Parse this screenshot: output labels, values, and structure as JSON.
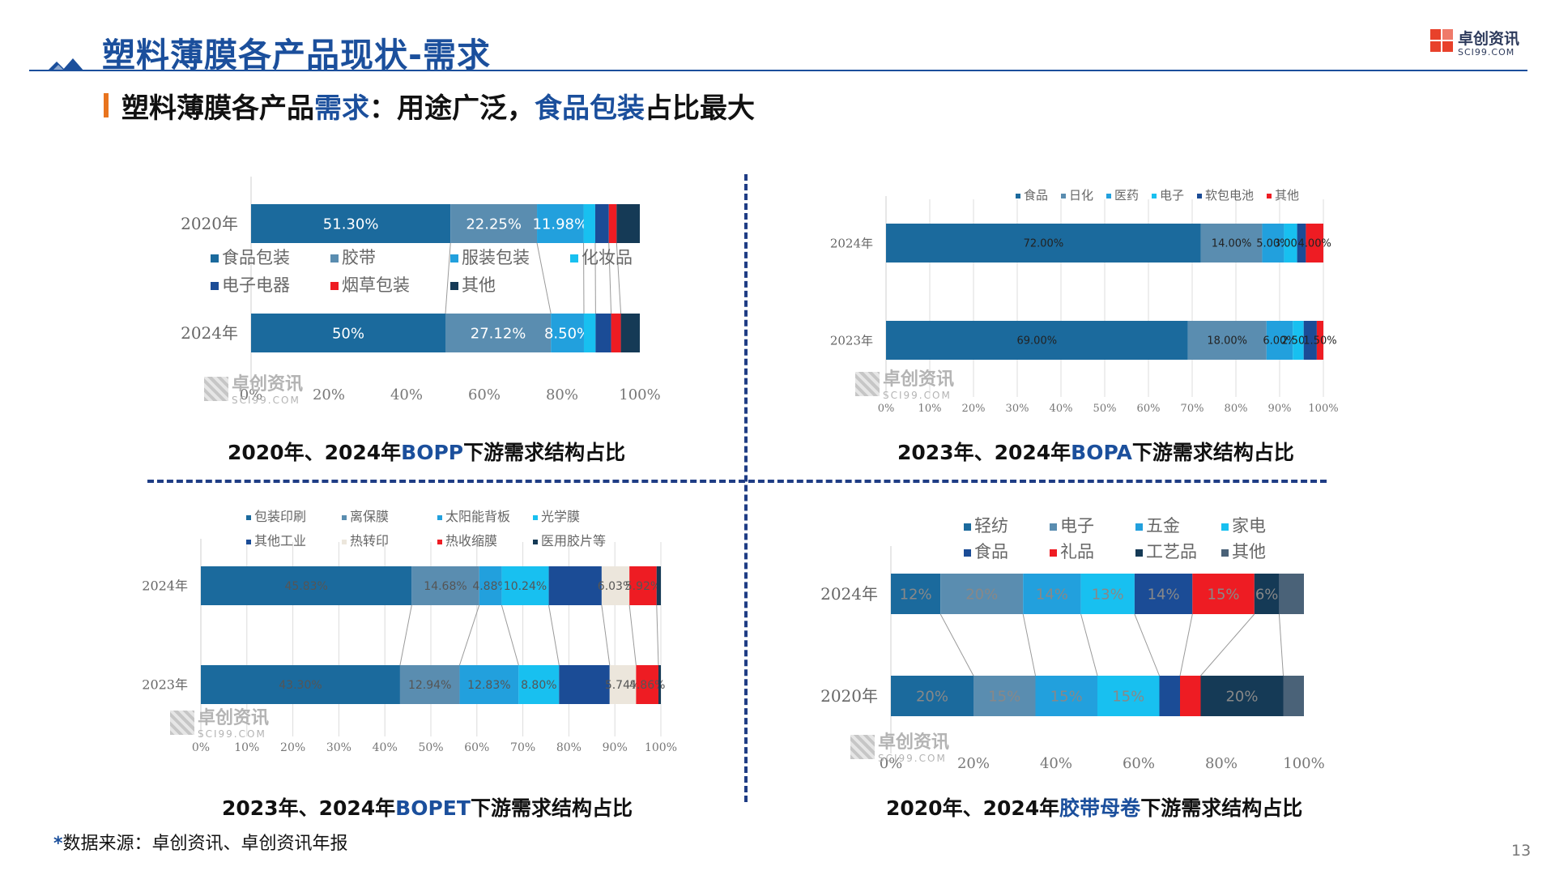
{
  "header": {
    "title": "塑料薄膜各产品现状-需求",
    "logo_name": "卓创资讯",
    "logo_sub": "SCI99.COM"
  },
  "subtitle": {
    "part1": "塑料薄膜各产品",
    "part2": "需求",
    "part3": "：用途广泛，",
    "part4": "食品包装",
    "part5": "占比最大"
  },
  "captions": {
    "bopp": {
      "a": "2020年、2024年",
      "b": "BOPP",
      "c": "下游需求结构占比"
    },
    "bopa": {
      "a": "2023年、2024年",
      "b": "BOPA",
      "c": "下游需求结构占比"
    },
    "bopet": {
      "a": "2023年、2024年",
      "b": "BOPET",
      "c": "下游需求结构占比"
    },
    "tape": {
      "a": "2020年、2024年",
      "b": "胶带母卷",
      "c": "下游需求结构占比"
    }
  },
  "watermark": {
    "name": "卓创资讯",
    "sub": "SCI99.COM"
  },
  "footer": {
    "star": "*",
    "note": "数据来源：卓创资讯、卓创资讯年报",
    "page": "13"
  },
  "colors": {
    "blue_dark": "#1b6a9d",
    "steel": "#5a8db0",
    "sky": "#22a0dd",
    "cyan": "#18c0f0",
    "navy": "#1b4c96",
    "red": "#ee1c23",
    "black_navy": "#153a56",
    "slate": "#4a6278",
    "cream": "#ece6dc",
    "accent": "#1b4f9c"
  },
  "chart_data": [
    {
      "id": "bopp",
      "type": "bar",
      "orientation": "horizontal-stacked-100",
      "categories": [
        "2020年",
        "2024年"
      ],
      "legend_placement": "between-bars",
      "x_ticks": [
        "0%",
        "20%",
        "40%",
        "60%",
        "80%",
        "100%"
      ],
      "series": [
        {
          "name": "食品包装",
          "color": "#1b6a9d",
          "values": [
            51.3,
            50.0
          ],
          "labels": [
            "51.30%",
            "50%"
          ]
        },
        {
          "name": "胶带",
          "color": "#5a8db0",
          "values": [
            22.25,
            27.12
          ],
          "labels": [
            "22.25%",
            "27.12%"
          ]
        },
        {
          "name": "服装包装",
          "color": "#22a0dd",
          "values": [
            11.98,
            8.5
          ],
          "labels": [
            "11.98%",
            "8.50%"
          ]
        },
        {
          "name": "化妆品",
          "color": "#18c0f0",
          "values": [
            3.0,
            3.0
          ],
          "labels": [
            "",
            ""
          ]
        },
        {
          "name": "电子电器",
          "color": "#1b4c96",
          "values": [
            3.5,
            4.0
          ],
          "labels": [
            "",
            ""
          ]
        },
        {
          "name": "烟草包装",
          "color": "#ee1c23",
          "values": [
            2.0,
            2.5
          ],
          "labels": [
            "",
            ""
          ]
        },
        {
          "name": "其他",
          "color": "#153a56",
          "values": [
            5.97,
            4.88
          ],
          "labels": [
            "",
            ""
          ]
        }
      ]
    },
    {
      "id": "bopa",
      "type": "bar",
      "orientation": "horizontal-stacked-100",
      "categories": [
        "2024年",
        "2023年"
      ],
      "legend_placement": "top",
      "x_ticks": [
        "0%",
        "10%",
        "20%",
        "30%",
        "40%",
        "50%",
        "60%",
        "70%",
        "80%",
        "90%",
        "100%"
      ],
      "series": [
        {
          "name": "食品",
          "color": "#1b6a9d",
          "values": [
            72.0,
            69.0
          ],
          "labels": [
            "72.00%",
            "69.00%"
          ]
        },
        {
          "name": "日化",
          "color": "#5a8db0",
          "values": [
            14.0,
            18.0
          ],
          "labels": [
            "14.00%",
            "18.00%"
          ]
        },
        {
          "name": "医药",
          "color": "#22a0dd",
          "values": [
            5.0,
            6.0
          ],
          "labels": [
            "5.00%",
            "6.00%"
          ]
        },
        {
          "name": "电子",
          "color": "#18c0f0",
          "values": [
            3.0,
            2.5
          ],
          "labels": [
            "3.00%",
            "2.50%"
          ]
        },
        {
          "name": "软包电池",
          "color": "#1b4c96",
          "values": [
            2.0,
            3.0
          ],
          "labels": [
            "",
            ""
          ]
        },
        {
          "name": "其他",
          "color": "#ee1c23",
          "values": [
            4.0,
            1.5
          ],
          "labels": [
            "4.00%",
            "1.50%"
          ]
        }
      ]
    },
    {
      "id": "bopet",
      "type": "bar",
      "orientation": "horizontal-stacked-100",
      "categories": [
        "2024年",
        "2023年"
      ],
      "legend_placement": "top",
      "x_ticks": [
        "0%",
        "10%",
        "20%",
        "30%",
        "40%",
        "50%",
        "60%",
        "70%",
        "80%",
        "90%",
        "100%"
      ],
      "series": [
        {
          "name": "包装印刷",
          "color": "#1b6a9d",
          "values": [
            45.83,
            43.3
          ],
          "labels": [
            "45.83%",
            "43.30%"
          ]
        },
        {
          "name": "离保膜",
          "color": "#5a8db0",
          "values": [
            14.68,
            12.94
          ],
          "labels": [
            "14.68%",
            "12.94%"
          ]
        },
        {
          "name": "太阳能背板",
          "color": "#22a0dd",
          "values": [
            4.88,
            12.83
          ],
          "labels": [
            "4.88%",
            "12.83%"
          ]
        },
        {
          "name": "光学膜",
          "color": "#18c0f0",
          "values": [
            10.24,
            8.8
          ],
          "labels": [
            "10.24%",
            "8.80%"
          ]
        },
        {
          "name": "其他工业",
          "color": "#1b4c96",
          "values": [
            11.5,
            11.0
          ],
          "labels": [
            "",
            ""
          ]
        },
        {
          "name": "热转印",
          "color": "#ece6dc",
          "values": [
            6.03,
            5.74
          ],
          "labels": [
            "6.03%",
            "5.74%"
          ]
        },
        {
          "name": "热收缩膜",
          "color": "#ee1c23",
          "values": [
            5.92,
            4.86
          ],
          "labels": [
            "5.92%",
            "4.86%"
          ]
        },
        {
          "name": "医用胶片等",
          "color": "#153a56",
          "values": [
            0.92,
            0.53
          ],
          "labels": [
            "",
            ""
          ]
        }
      ]
    },
    {
      "id": "tape",
      "type": "bar",
      "orientation": "horizontal-stacked-100",
      "categories": [
        "2024年",
        "2020年"
      ],
      "legend_placement": "top",
      "x_ticks": [
        "0%",
        "20%",
        "40%",
        "60%",
        "80%",
        "100%"
      ],
      "series": [
        {
          "name": "轻纺",
          "color": "#1b6a9d",
          "values": [
            12,
            20
          ],
          "labels": [
            "12%",
            "20%"
          ]
        },
        {
          "name": "电子",
          "color": "#5a8db0",
          "values": [
            20,
            15
          ],
          "labels": [
            "20%",
            "15%"
          ]
        },
        {
          "name": "五金",
          "color": "#22a0dd",
          "values": [
            14,
            15
          ],
          "labels": [
            "14%",
            "15%"
          ]
        },
        {
          "name": "家电",
          "color": "#18c0f0",
          "values": [
            13,
            15
          ],
          "labels": [
            "13%",
            "15%"
          ]
        },
        {
          "name": "食品",
          "color": "#1b4c96",
          "values": [
            14,
            5
          ],
          "labels": [
            "14%",
            ""
          ]
        },
        {
          "name": "礼品",
          "color": "#ee1c23",
          "values": [
            15,
            5
          ],
          "labels": [
            "15%",
            ""
          ]
        },
        {
          "name": "工艺品",
          "color": "#153a56",
          "values": [
            6,
            20
          ],
          "labels": [
            "6%",
            "20%"
          ]
        },
        {
          "name": "其他",
          "color": "#4a6278",
          "values": [
            6,
            5
          ],
          "labels": [
            "",
            ""
          ]
        }
      ]
    }
  ]
}
